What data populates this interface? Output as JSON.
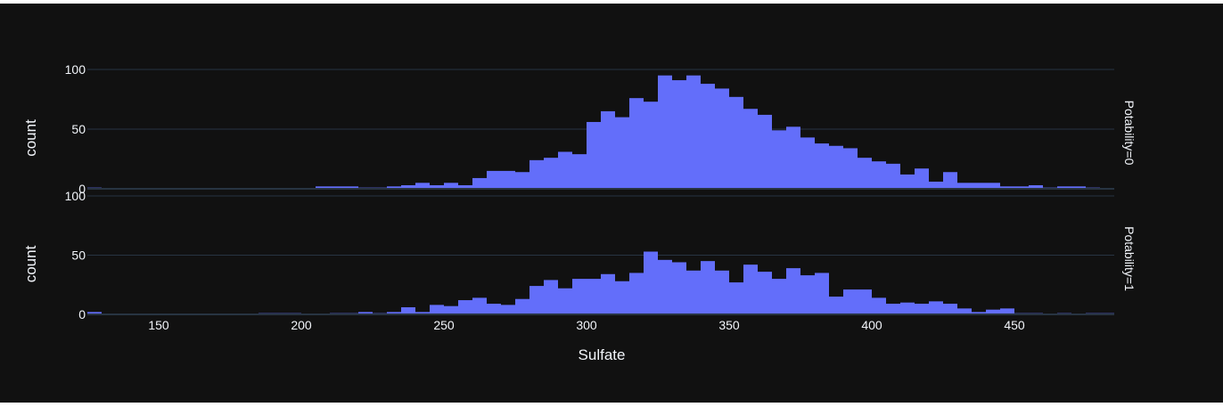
{
  "chart_data": {
    "type": "bar",
    "subtype": "faceted-histogram",
    "theme": "plotly_dark",
    "colors": {
      "background": "#111111",
      "bar": "#636efa",
      "grid": "#283442",
      "text": "#f2f5fa"
    },
    "grid": true,
    "xlabel": "Sulfate",
    "xlim": [
      125,
      485
    ],
    "xticks": [
      150,
      200,
      250,
      300,
      350,
      400,
      450
    ],
    "bin_start": 125,
    "bin_width": 5,
    "panels": [
      {
        "facet_label": "Potability=0",
        "ylabel": "count",
        "ylim": [
          0,
          100
        ],
        "yticks": [
          0,
          50,
          100
        ],
        "values": [
          1,
          0,
          0,
          0,
          0,
          0,
          0,
          0,
          0,
          0,
          0,
          0,
          0,
          0,
          0,
          0,
          2,
          2,
          2,
          1,
          1,
          2,
          3,
          5,
          3,
          5,
          3,
          9,
          15,
          15,
          14,
          24,
          26,
          31,
          29,
          56,
          65,
          60,
          76,
          73,
          95,
          91,
          95,
          88,
          84,
          77,
          67,
          62,
          49,
          52,
          43,
          38,
          36,
          34,
          26,
          23,
          21,
          12,
          17,
          6,
          14,
          5,
          5,
          5,
          2,
          2,
          3,
          1,
          2,
          2,
          1,
          0,
          0
        ]
      },
      {
        "facet_label": "Potability=1",
        "ylabel": "count",
        "ylim": [
          0,
          100
        ],
        "yticks": [
          0,
          50,
          100
        ],
        "values": [
          2,
          0,
          0,
          0,
          0,
          0,
          0,
          0,
          0,
          0,
          0,
          0,
          1,
          1,
          1,
          0,
          0,
          1,
          1,
          2,
          1,
          2,
          6,
          2,
          8,
          7,
          12,
          14,
          9,
          8,
          13,
          24,
          29,
          22,
          30,
          30,
          34,
          28,
          35,
          53,
          46,
          44,
          37,
          45,
          37,
          27,
          42,
          36,
          30,
          39,
          33,
          35,
          15,
          21,
          21,
          14,
          9,
          10,
          9,
          11,
          9,
          5,
          2,
          4,
          5,
          1,
          1,
          0,
          1,
          0,
          1,
          1,
          0
        ]
      }
    ]
  }
}
